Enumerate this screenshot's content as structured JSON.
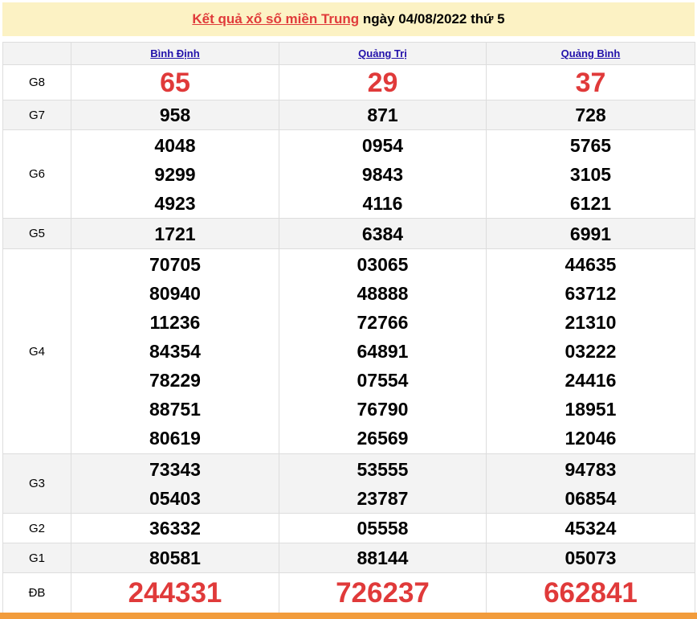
{
  "title": {
    "link": "Kết quả xổ số miền Trung",
    "rest": " ngày 04/08/2022 thứ 5"
  },
  "provinces": [
    "Bình Định",
    "Quảng Trị",
    "Quảng Bình"
  ],
  "rows": [
    {
      "label": "G8",
      "values": [
        [
          "65"
        ],
        [
          "29"
        ],
        [
          "37"
        ]
      ]
    },
    {
      "label": "G7",
      "values": [
        [
          "958"
        ],
        [
          "871"
        ],
        [
          "728"
        ]
      ]
    },
    {
      "label": "G6",
      "values": [
        [
          "4048",
          "9299",
          "4923"
        ],
        [
          "0954",
          "9843",
          "4116"
        ],
        [
          "5765",
          "3105",
          "6121"
        ]
      ]
    },
    {
      "label": "G5",
      "values": [
        [
          "1721"
        ],
        [
          "6384"
        ],
        [
          "6991"
        ]
      ]
    },
    {
      "label": "G4",
      "values": [
        [
          "70705",
          "80940",
          "11236",
          "84354",
          "78229",
          "88751",
          "80619"
        ],
        [
          "03065",
          "48888",
          "72766",
          "64891",
          "07554",
          "76790",
          "26569"
        ],
        [
          "44635",
          "63712",
          "21310",
          "03222",
          "24416",
          "18951",
          "12046"
        ]
      ]
    },
    {
      "label": "G3",
      "values": [
        [
          "73343",
          "05403"
        ],
        [
          "53555",
          "23787"
        ],
        [
          "94783",
          "06854"
        ]
      ]
    },
    {
      "label": "G2",
      "values": [
        [
          "36332"
        ],
        [
          "05558"
        ],
        [
          "45324"
        ]
      ]
    },
    {
      "label": "G1",
      "values": [
        [
          "80581"
        ],
        [
          "88144"
        ],
        [
          "05073"
        ]
      ]
    },
    {
      "label": "ĐB",
      "values": [
        [
          "244331"
        ],
        [
          "726237"
        ],
        [
          "662841"
        ]
      ]
    }
  ],
  "colors": {
    "accent": "#e03a3a",
    "header_bg": "#fcf2c4",
    "bar": "#f29c3c",
    "link": "#2211aa"
  }
}
